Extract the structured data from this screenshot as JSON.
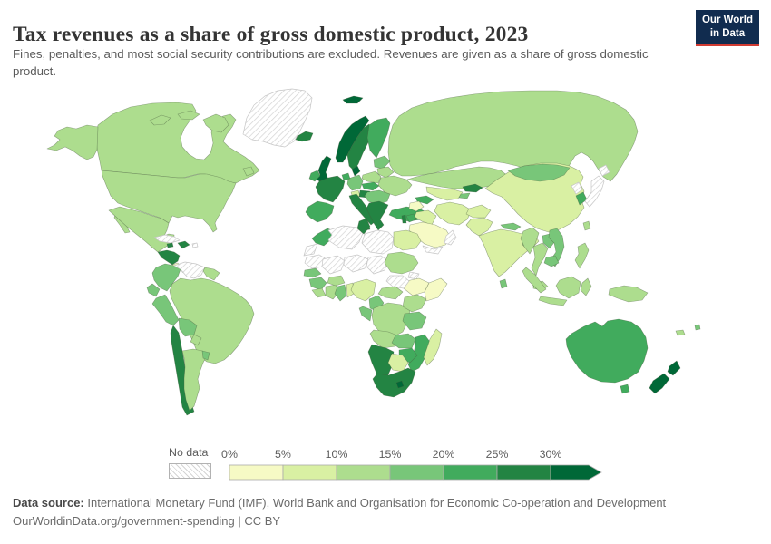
{
  "header": {
    "title": "Tax revenues as a share of gross domestic product, 2023",
    "subtitle": "Fines, penalties, and most social security contributions are excluded. Revenues are given as a share of gross domestic product."
  },
  "logo": {
    "line1": "Our World",
    "line2": "in Data",
    "bg_color": "#112c4f",
    "accent_color": "#d13b32"
  },
  "legend": {
    "no_data_label": "No data",
    "ticks": [
      "0%",
      "5%",
      "10%",
      "15%",
      "20%",
      "25%",
      "30%"
    ]
  },
  "footer": {
    "source_label": "Data source:",
    "source_text": " International Monetary Fund (IMF), World Bank and Organisation for Economic Co-operation and Development",
    "link_line": "OurWorldinData.org/government-spending | CC BY"
  },
  "chart_data": {
    "type": "choropleth",
    "title": "Tax revenues as a share of gross domestic product, 2023",
    "unit": "% of GDP",
    "legend_ticks": [
      "0%",
      "5%",
      "10%",
      "15%",
      "20%",
      "25%",
      "30%"
    ],
    "buckets": [
      {
        "range": "0-5%",
        "color": "#f6fac5"
      },
      {
        "range": "5-10%",
        "color": "#d9f0a3"
      },
      {
        "range": "10-15%",
        "color": "#addd8e"
      },
      {
        "range": "15-20%",
        "color": "#78c679"
      },
      {
        "range": "20-25%",
        "color": "#41ab5d"
      },
      {
        "range": "25-30%",
        "color": "#238443"
      },
      {
        "range": "30%+",
        "color": "#006837"
      }
    ],
    "no_data": {
      "label": "No data",
      "pattern": "diagonal-hatch"
    },
    "regions": {
      "russia": 2,
      "kazakhstan": 2,
      "china": 1,
      "mongolia": 3,
      "canada": 2,
      "alaska": 2,
      "arctic_islands_1": 2,
      "arctic_islands_2": 2,
      "baffin": 2,
      "greenland": "no_data",
      "newfoundland": 2,
      "usa": 2,
      "baja": 2,
      "mexico": 2,
      "central_america": 5,
      "costa_rica": 0,
      "panama": 3,
      "cuba": "no_data",
      "jamaica": 5,
      "hispaniola": 5,
      "puerto_rico": "no_data",
      "colombia": 3,
      "venezuela": "no_data",
      "guyanas": 2,
      "ecuador": 3,
      "peru": 3,
      "brazil": 2,
      "bolivia": 3,
      "paraguay": 2,
      "chile": 5,
      "argentina": 2,
      "uruguay": 3,
      "iceland": 5,
      "svalbard": 6,
      "norway": 6,
      "sweden": 5,
      "finland": 4,
      "denmark": 6,
      "uk": 6,
      "ireland": 4,
      "baltics": 3,
      "belarus": 2,
      "poland": 2,
      "germany": 3,
      "benelux": 4,
      "france": 5,
      "switzerland": 1,
      "austria": 5,
      "czech_slovakia": 4,
      "hungary_romania": 3,
      "ukraine": 2,
      "iberia": 4,
      "italy": 5,
      "sicily": 5,
      "balkans": 5,
      "turkey": 4,
      "caucasus": 4,
      "uzbek_turkmen": 1,
      "kyrgyzstan": 5,
      "tajikistan": 3,
      "syria": 0,
      "israel": 5,
      "jordan": 4,
      "iraq": 1,
      "iran": 1,
      "saudi_arabia": 0,
      "yemen": "no_data",
      "oman": "no_data",
      "morocco": 4,
      "western_sahara": "no_data",
      "algeria": "no_data",
      "tunisia": 5,
      "libya": "no_data",
      "egypt": 1,
      "mauritania": "no_data",
      "mali": "no_data",
      "niger": "no_data",
      "chad": "no_data",
      "sudan": 2,
      "eritrea": "no_data",
      "ethiopia": 0,
      "somalia": 0,
      "south_sudan": "no_data",
      "senegal": 3,
      "guinea": 3,
      "sierra_leone": 2,
      "ivory_coast": 2,
      "ghana": 3,
      "togo_benin": 1,
      "burkina_faso": 2,
      "nigeria": 1,
      "cameroon": 3,
      "central_african_republic": 2,
      "gabon_congo": 3,
      "drc": 2,
      "uganda_kenya": 2,
      "tanzania": 3,
      "angola": 2,
      "zambia": 3,
      "mozambique": 4,
      "zimbabwe": 4,
      "namibia": 5,
      "botswana": 1,
      "south_africa": 5,
      "lesotho": 6,
      "madagascar": 1,
      "afghanistan": 1,
      "pakistan": 1,
      "india": 1,
      "nepal": 3,
      "bangladesh": 2,
      "sri_lanka": 3,
      "north_korea": "no_data",
      "south_korea": 4,
      "japan": "no_data",
      "hokkaido": "no_data",
      "taiwan": 2,
      "myanmar": 2,
      "thailand": 2,
      "laos": 3,
      "vietnam": 3,
      "cambodia": 3,
      "malaysia": 2,
      "sumatra": 2,
      "java": 2,
      "borneo": 2,
      "sulawesi": 2,
      "philippines": 2,
      "new_guinea": 2,
      "australia": 4,
      "tasmania": 4,
      "nz_north": 6,
      "nz_south": 6,
      "fiji": 3,
      "new_caledonia": 2
    }
  }
}
